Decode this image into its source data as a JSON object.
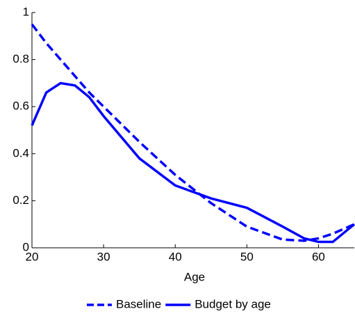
{
  "chart_data": {
    "type": "line",
    "x_label": "Age",
    "x": [
      20,
      22,
      24,
      26,
      28,
      30,
      35,
      40,
      45,
      50,
      55,
      58,
      60,
      62,
      65
    ],
    "series": [
      {
        "name": "Baseline",
        "color": "#0000ff",
        "style": "dashed",
        "values": [
          0.95,
          0.87,
          0.8,
          0.73,
          0.66,
          0.6,
          0.45,
          0.31,
          0.19,
          0.09,
          0.035,
          0.03,
          0.04,
          0.06,
          0.1
        ]
      },
      {
        "name": "Budget by age",
        "color": "#0000ff",
        "style": "solid",
        "values": [
          0.52,
          0.66,
          0.7,
          0.69,
          0.64,
          0.56,
          0.38,
          0.265,
          0.21,
          0.17,
          0.09,
          0.04,
          0.025,
          0.025,
          0.1
        ]
      }
    ],
    "xlim": [
      20,
      65
    ],
    "xticks": [
      20,
      30,
      40,
      50,
      60
    ],
    "ylim": [
      0,
      1
    ],
    "yticks": [
      0,
      0.2,
      0.4,
      0.6,
      0.8,
      1
    ],
    "grid": false,
    "legend": "bottom"
  }
}
